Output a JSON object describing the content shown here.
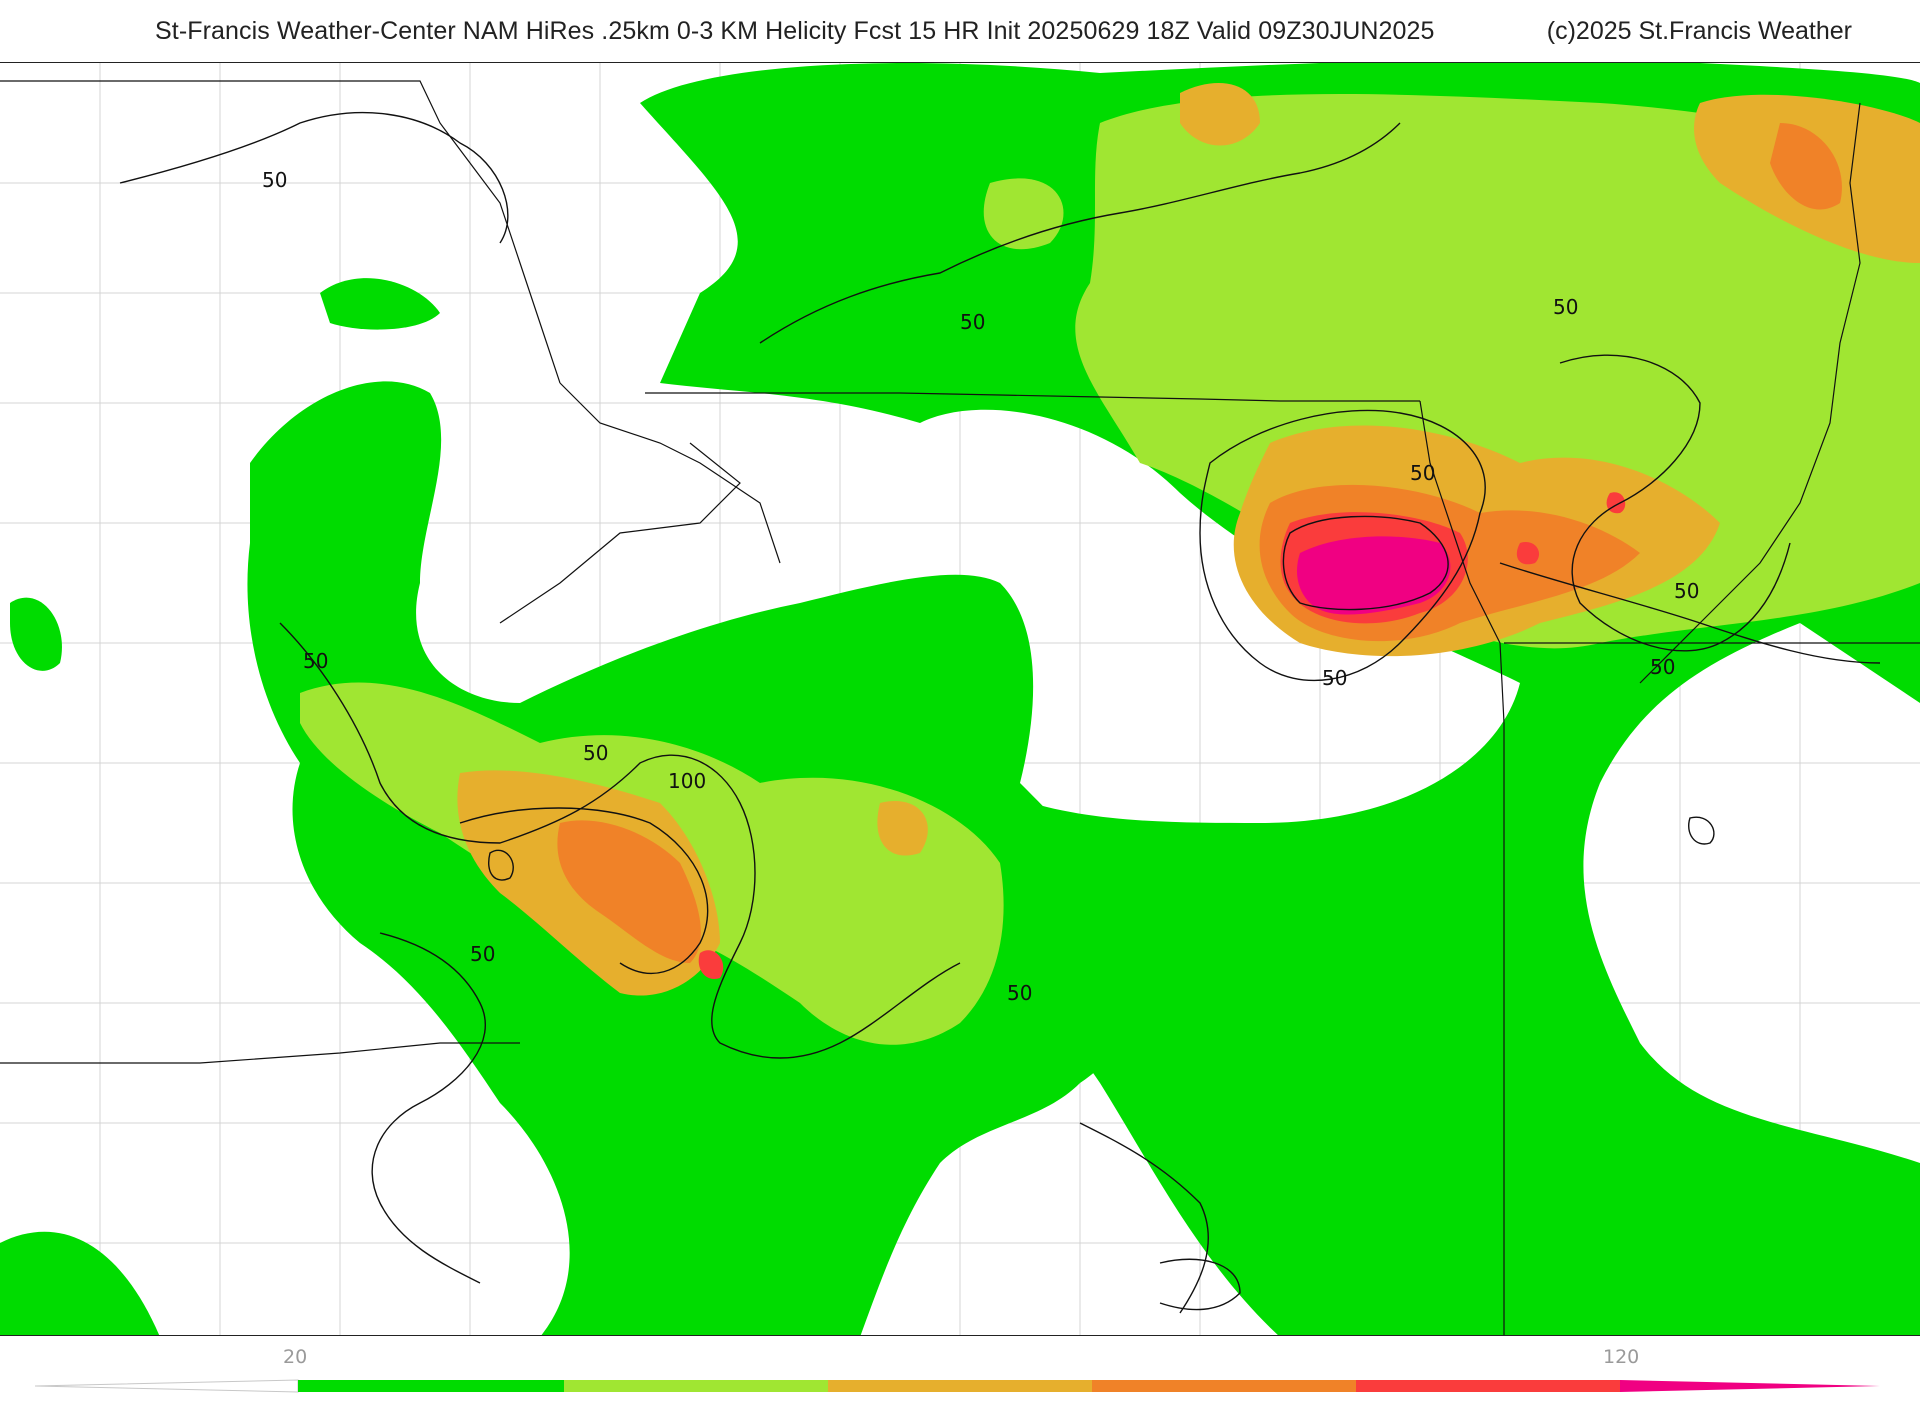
{
  "header": {
    "title": "St-Francis Weather-Center NAM HiRes .25km 0-3 KM Helicity Fcst 15 HR Init 20250629 18Z  Valid 09Z30JUN2025",
    "copyright": "(c)2025 St.Francis Weather"
  },
  "map": {
    "variable": "0-3 KM Helicity",
    "contour_labels": [
      "50",
      "50",
      "50",
      "50",
      "50",
      "50",
      "50",
      "50",
      "50",
      "50",
      "100",
      "50"
    ]
  },
  "legend": {
    "tick_labels": [
      "20",
      "120"
    ],
    "colors": [
      "#00dc00",
      "#a0e632",
      "#e6af2d",
      "#f08228",
      "#fa3c3c",
      "#f00082"
    ]
  }
}
